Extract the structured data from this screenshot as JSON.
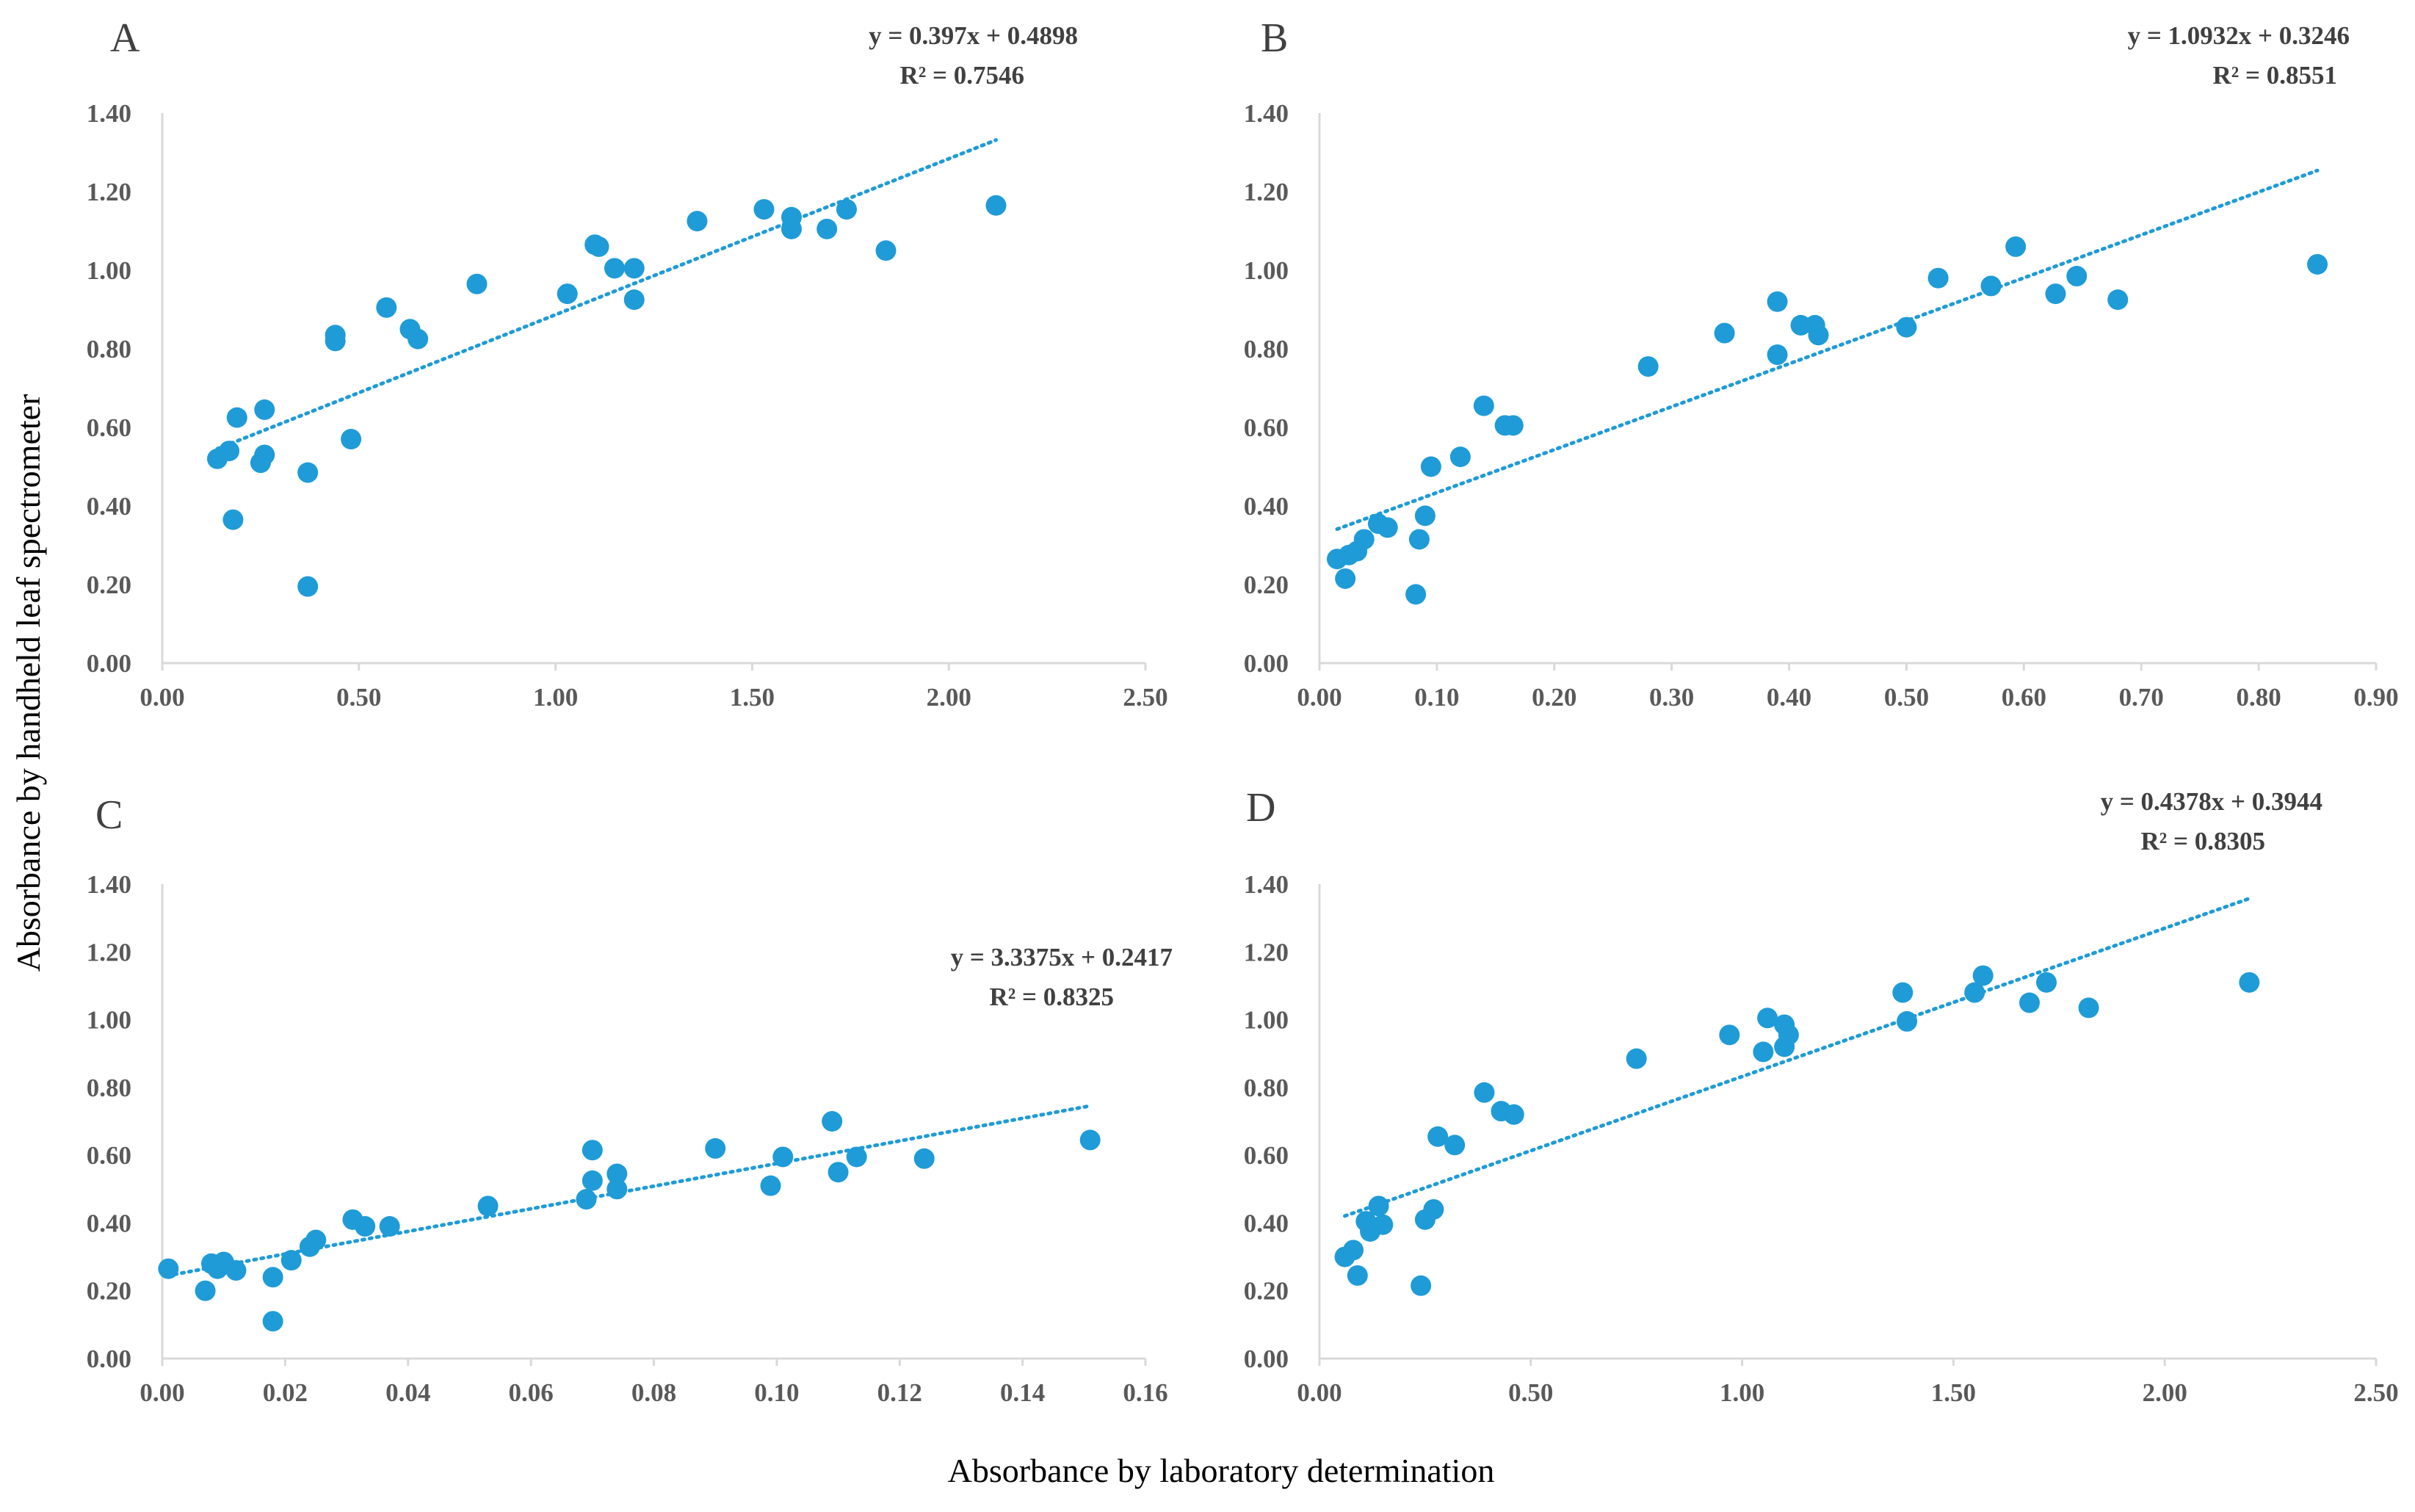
{
  "figure": {
    "ylabel": "Absorbance by handheld leaf spectrometer",
    "xlabel": "Absorbance by laboratory determination",
    "marker_color": "#1F9BD7",
    "trend_color": "#1F9BD7",
    "axis_color": "#D9D9D9",
    "tick_color": "#595959"
  },
  "chart_data": [
    {
      "panel": "A",
      "type": "scatter",
      "xlim": [
        0,
        2.5
      ],
      "ylim": [
        0,
        1.4
      ],
      "xticks": [
        "0.00",
        "0.50",
        "1.00",
        "1.50",
        "2.00",
        "2.50"
      ],
      "yticks": [
        "0.00",
        "0.20",
        "0.40",
        "0.60",
        "0.80",
        "1.00",
        "1.20",
        "1.40"
      ],
      "equation": "y = 0.397x + 0.4898",
      "r2": "R² = 0.7546",
      "trendline": {
        "slope": 0.397,
        "intercept": 0.4898,
        "x_from": 0.14,
        "x_to": 2.12
      },
      "points": [
        [
          0.14,
          0.52
        ],
        [
          0.17,
          0.54
        ],
        [
          0.18,
          0.365
        ],
        [
          0.19,
          0.625
        ],
        [
          0.25,
          0.51
        ],
        [
          0.26,
          0.645
        ],
        [
          0.26,
          0.53
        ],
        [
          0.37,
          0.485
        ],
        [
          0.37,
          0.195
        ],
        [
          0.44,
          0.835
        ],
        [
          0.44,
          0.82
        ],
        [
          0.48,
          0.57
        ],
        [
          0.57,
          0.905
        ],
        [
          0.63,
          0.85
        ],
        [
          0.65,
          0.825
        ],
        [
          0.8,
          0.965
        ],
        [
          1.03,
          0.94
        ],
        [
          1.1,
          1.065
        ],
        [
          1.11,
          1.06
        ],
        [
          1.15,
          1.005
        ],
        [
          1.2,
          1.005
        ],
        [
          1.2,
          0.925
        ],
        [
          1.36,
          1.125
        ],
        [
          1.53,
          1.155
        ],
        [
          1.6,
          1.135
        ],
        [
          1.6,
          1.105
        ],
        [
          1.69,
          1.105
        ],
        [
          1.74,
          1.155
        ],
        [
          1.84,
          1.05
        ],
        [
          2.12,
          1.165
        ]
      ]
    },
    {
      "panel": "B",
      "type": "scatter",
      "xlim": [
        0,
        0.9
      ],
      "ylim": [
        0,
        1.4
      ],
      "xticks": [
        "0.00",
        "0.10",
        "0.20",
        "0.30",
        "0.40",
        "0.50",
        "0.60",
        "0.70",
        "0.80",
        "0.90"
      ],
      "yticks": [
        "0.00",
        "0.20",
        "0.40",
        "0.60",
        "0.80",
        "1.00",
        "1.20",
        "1.40"
      ],
      "equation": "y = 1.0932x + 0.3246",
      "r2": "R² = 0.8551",
      "trendline": {
        "slope": 1.0932,
        "intercept": 0.3246,
        "x_from": 0.015,
        "x_to": 0.85
      },
      "points": [
        [
          0.015,
          0.265
        ],
        [
          0.022,
          0.215
        ],
        [
          0.025,
          0.275
        ],
        [
          0.032,
          0.285
        ],
        [
          0.038,
          0.315
        ],
        [
          0.05,
          0.355
        ],
        [
          0.058,
          0.345
        ],
        [
          0.082,
          0.175
        ],
        [
          0.085,
          0.315
        ],
        [
          0.09,
          0.375
        ],
        [
          0.095,
          0.5
        ],
        [
          0.12,
          0.525
        ],
        [
          0.14,
          0.655
        ],
        [
          0.158,
          0.605
        ],
        [
          0.165,
          0.605
        ],
        [
          0.28,
          0.755
        ],
        [
          0.345,
          0.84
        ],
        [
          0.39,
          0.785
        ],
        [
          0.39,
          0.92
        ],
        [
          0.41,
          0.86
        ],
        [
          0.422,
          0.86
        ],
        [
          0.425,
          0.835
        ],
        [
          0.5,
          0.855
        ],
        [
          0.527,
          0.98
        ],
        [
          0.572,
          0.96
        ],
        [
          0.593,
          1.06
        ],
        [
          0.627,
          0.94
        ],
        [
          0.645,
          0.985
        ],
        [
          0.68,
          0.925
        ],
        [
          0.85,
          1.015
        ]
      ]
    },
    {
      "panel": "C",
      "type": "scatter",
      "xlim": [
        0,
        0.16
      ],
      "ylim": [
        0,
        1.4
      ],
      "xticks": [
        "0.00",
        "0.02",
        "0.04",
        "0.06",
        "0.08",
        "0.10",
        "0.12",
        "0.14",
        "0.16"
      ],
      "yticks": [
        "0.00",
        "0.20",
        "0.40",
        "0.60",
        "0.80",
        "1.00",
        "1.20",
        "1.40"
      ],
      "equation": "y = 3.3375x + 0.2417",
      "r2": "R² = 0.8325",
      "trendline": {
        "slope": 3.3375,
        "intercept": 0.2417,
        "x_from": 0.002,
        "x_to": 0.151
      },
      "points": [
        [
          0.001,
          0.265
        ],
        [
          0.007,
          0.2
        ],
        [
          0.008,
          0.28
        ],
        [
          0.009,
          0.265
        ],
        [
          0.01,
          0.285
        ],
        [
          0.012,
          0.26
        ],
        [
          0.018,
          0.11
        ],
        [
          0.018,
          0.24
        ],
        [
          0.021,
          0.29
        ],
        [
          0.024,
          0.33
        ],
        [
          0.025,
          0.35
        ],
        [
          0.031,
          0.41
        ],
        [
          0.033,
          0.39
        ],
        [
          0.037,
          0.39
        ],
        [
          0.053,
          0.45
        ],
        [
          0.069,
          0.47
        ],
        [
          0.07,
          0.525
        ],
        [
          0.07,
          0.615
        ],
        [
          0.074,
          0.545
        ],
        [
          0.074,
          0.5
        ],
        [
          0.09,
          0.62
        ],
        [
          0.099,
          0.51
        ],
        [
          0.101,
          0.595
        ],
        [
          0.109,
          0.7
        ],
        [
          0.11,
          0.55
        ],
        [
          0.113,
          0.595
        ],
        [
          0.124,
          0.59
        ],
        [
          0.151,
          0.645
        ]
      ]
    },
    {
      "panel": "D",
      "type": "scatter",
      "xlim": [
        0,
        2.5
      ],
      "ylim": [
        0,
        1.4
      ],
      "xticks": [
        "0.00",
        "0.50",
        "1.00",
        "1.50",
        "2.00",
        "2.50"
      ],
      "yticks": [
        "0.00",
        "0.20",
        "0.40",
        "0.60",
        "0.80",
        "1.00",
        "1.20",
        "1.40"
      ],
      "equation": "y = 0.4378x + 0.3944",
      "r2": "R² = 0.8305",
      "trendline": {
        "slope": 0.4378,
        "intercept": 0.3944,
        "x_from": 0.06,
        "x_to": 2.2
      },
      "points": [
        [
          0.06,
          0.3
        ],
        [
          0.08,
          0.32
        ],
        [
          0.09,
          0.245
        ],
        [
          0.11,
          0.405
        ],
        [
          0.12,
          0.375
        ],
        [
          0.14,
          0.45
        ],
        [
          0.15,
          0.395
        ],
        [
          0.24,
          0.215
        ],
        [
          0.25,
          0.41
        ],
        [
          0.27,
          0.44
        ],
        [
          0.28,
          0.655
        ],
        [
          0.32,
          0.63
        ],
        [
          0.39,
          0.785
        ],
        [
          0.43,
          0.73
        ],
        [
          0.46,
          0.72
        ],
        [
          0.75,
          0.885
        ],
        [
          0.97,
          0.955
        ],
        [
          1.05,
          0.905
        ],
        [
          1.06,
          1.005
        ],
        [
          1.1,
          0.985
        ],
        [
          1.1,
          0.92
        ],
        [
          1.11,
          0.955
        ],
        [
          1.38,
          1.08
        ],
        [
          1.39,
          0.995
        ],
        [
          1.55,
          1.08
        ],
        [
          1.57,
          1.13
        ],
        [
          1.68,
          1.05
        ],
        [
          1.72,
          1.11
        ],
        [
          1.82,
          1.035
        ],
        [
          2.2,
          1.11
        ]
      ]
    }
  ]
}
